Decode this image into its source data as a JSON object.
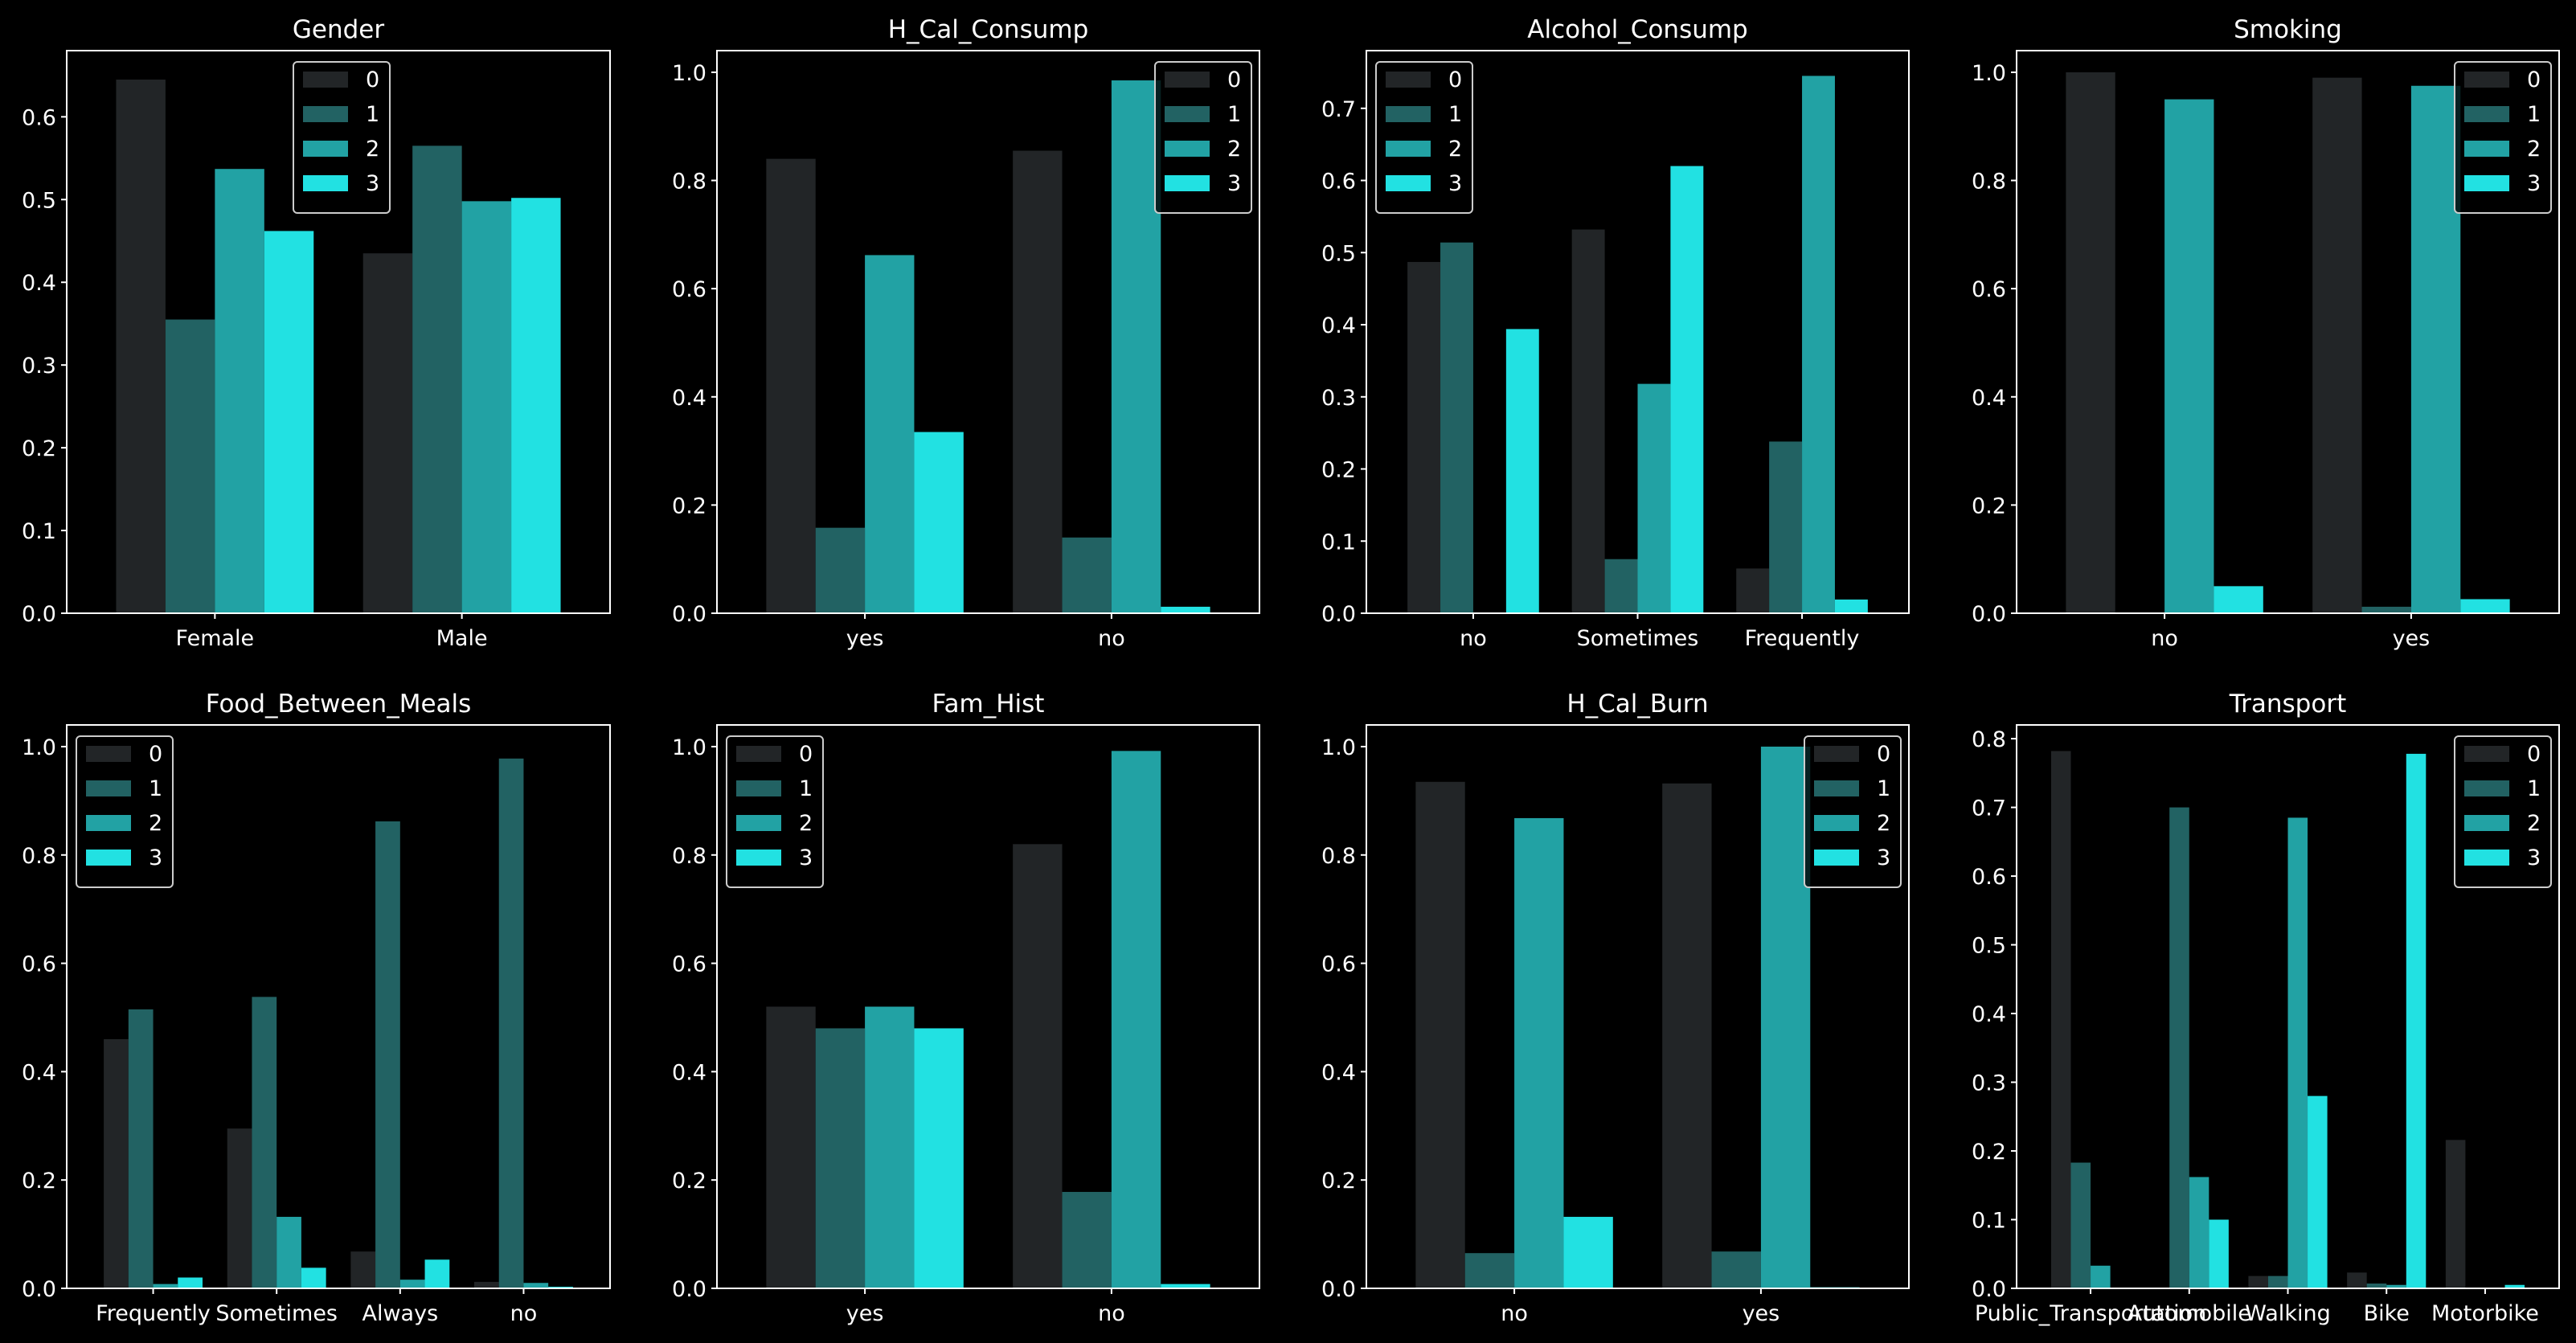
{
  "figure": {
    "background": "#000000"
  },
  "colors": {
    "0": "#222527",
    "1": "#226263",
    "2": "#22a2a4",
    "3": "#22e1e2",
    "axes": "#ffffff"
  },
  "chart_data": [
    {
      "type": "bar",
      "title": "Gender",
      "categories": [
        "Female",
        "Male"
      ],
      "ylim": [
        0,
        0.68
      ],
      "yticks": [
        "0.0",
        "0.1",
        "0.2",
        "0.3",
        "0.4",
        "0.5",
        "0.6"
      ],
      "legend": "top-center",
      "series": [
        {
          "name": "0",
          "values": [
            0.645,
            0.435
          ]
        },
        {
          "name": "1",
          "values": [
            0.355,
            0.565
          ]
        },
        {
          "name": "2",
          "values": [
            0.537,
            0.498
          ]
        },
        {
          "name": "3",
          "values": [
            0.462,
            0.502
          ]
        }
      ]
    },
    {
      "type": "bar",
      "title": "H_Cal_Consump",
      "categories": [
        "yes",
        "no"
      ],
      "ylim": [
        0,
        1.04
      ],
      "yticks": [
        "0.0",
        "0.2",
        "0.4",
        "0.6",
        "0.8",
        "1.0"
      ],
      "legend": "top-right",
      "series": [
        {
          "name": "0",
          "values": [
            0.84,
            0.855
          ]
        },
        {
          "name": "1",
          "values": [
            0.158,
            0.14
          ]
        },
        {
          "name": "2",
          "values": [
            0.662,
            0.985
          ]
        },
        {
          "name": "3",
          "values": [
            0.335,
            0.012
          ]
        }
      ]
    },
    {
      "type": "bar",
      "title": "Alcohol_Consump",
      "categories": [
        "no",
        "Sometimes",
        "Frequently"
      ],
      "ylim": [
        0,
        0.78
      ],
      "yticks": [
        "0.0",
        "0.1",
        "0.2",
        "0.3",
        "0.4",
        "0.5",
        "0.6",
        "0.7"
      ],
      "legend": "top-left",
      "series": [
        {
          "name": "0",
          "values": [
            0.487,
            0.532,
            0.062
          ]
        },
        {
          "name": "1",
          "values": [
            0.514,
            0.075,
            0.238
          ]
        },
        {
          "name": "2",
          "values": [
            0.0,
            0.318,
            0.745
          ]
        },
        {
          "name": "3",
          "values": [
            0.394,
            0.62,
            0.019
          ]
        }
      ]
    },
    {
      "type": "bar",
      "title": "Smoking",
      "categories": [
        "no",
        "yes"
      ],
      "ylim": [
        0,
        1.04
      ],
      "yticks": [
        "0.0",
        "0.2",
        "0.4",
        "0.6",
        "0.8",
        "1.0"
      ],
      "legend": "top-right",
      "series": [
        {
          "name": "0",
          "values": [
            1.0,
            0.99
          ]
        },
        {
          "name": "1",
          "values": [
            0.0,
            0.012
          ]
        },
        {
          "name": "2",
          "values": [
            0.95,
            0.975
          ]
        },
        {
          "name": "3",
          "values": [
            0.05,
            0.026
          ]
        }
      ]
    },
    {
      "type": "bar",
      "title": "Food_Between_Meals",
      "categories": [
        "Frequently",
        "Sometimes",
        "Always",
        "no"
      ],
      "ylim": [
        0,
        1.04
      ],
      "yticks": [
        "0.0",
        "0.2",
        "0.4",
        "0.6",
        "0.8",
        "1.0"
      ],
      "legend": "top-left",
      "series": [
        {
          "name": "0",
          "values": [
            0.46,
            0.295,
            0.068,
            0.012
          ]
        },
        {
          "name": "1",
          "values": [
            0.515,
            0.538,
            0.862,
            0.978
          ]
        },
        {
          "name": "2",
          "values": [
            0.008,
            0.132,
            0.016,
            0.01
          ]
        },
        {
          "name": "3",
          "values": [
            0.02,
            0.038,
            0.053,
            0.003
          ]
        }
      ]
    },
    {
      "type": "bar",
      "title": "Fam_Hist",
      "categories": [
        "yes",
        "no"
      ],
      "ylim": [
        0,
        1.04
      ],
      "yticks": [
        "0.0",
        "0.2",
        "0.4",
        "0.6",
        "0.8",
        "1.0"
      ],
      "legend": "top-left",
      "series": [
        {
          "name": "0",
          "values": [
            0.52,
            0.82
          ]
        },
        {
          "name": "1",
          "values": [
            0.48,
            0.178
          ]
        },
        {
          "name": "2",
          "values": [
            0.52,
            0.992
          ]
        },
        {
          "name": "3",
          "values": [
            0.48,
            0.008
          ]
        }
      ]
    },
    {
      "type": "bar",
      "title": "H_Cal_Burn",
      "categories": [
        "no",
        "yes"
      ],
      "ylim": [
        0,
        1.04
      ],
      "yticks": [
        "0.0",
        "0.2",
        "0.4",
        "0.6",
        "0.8",
        "1.0"
      ],
      "legend": "top-right",
      "series": [
        {
          "name": "0",
          "values": [
            0.935,
            0.932
          ]
        },
        {
          "name": "1",
          "values": [
            0.065,
            0.068
          ]
        },
        {
          "name": "2",
          "values": [
            0.868,
            1.0
          ]
        },
        {
          "name": "3",
          "values": [
            0.132,
            0.002
          ]
        }
      ]
    },
    {
      "type": "bar",
      "title": "Transport",
      "categories": [
        "Public_Transportation",
        "Automobile",
        "Walking",
        "Bike",
        "Motorbike"
      ],
      "ylim": [
        0,
        0.82
      ],
      "yticks": [
        "0.0",
        "0.1",
        "0.2",
        "0.3",
        "0.4",
        "0.5",
        "0.6",
        "0.7",
        "0.8"
      ],
      "legend": "top-right",
      "series": [
        {
          "name": "0",
          "values": [
            0.782,
            0.0,
            0.018,
            0.023,
            0.216
          ]
        },
        {
          "name": "1",
          "values": [
            0.183,
            0.7,
            0.018,
            0.007,
            0.0
          ]
        },
        {
          "name": "2",
          "values": [
            0.033,
            0.162,
            0.685,
            0.005,
            0.0
          ]
        },
        {
          "name": "3",
          "values": [
            0.0,
            0.1,
            0.28,
            0.778,
            0.005
          ]
        }
      ]
    }
  ]
}
